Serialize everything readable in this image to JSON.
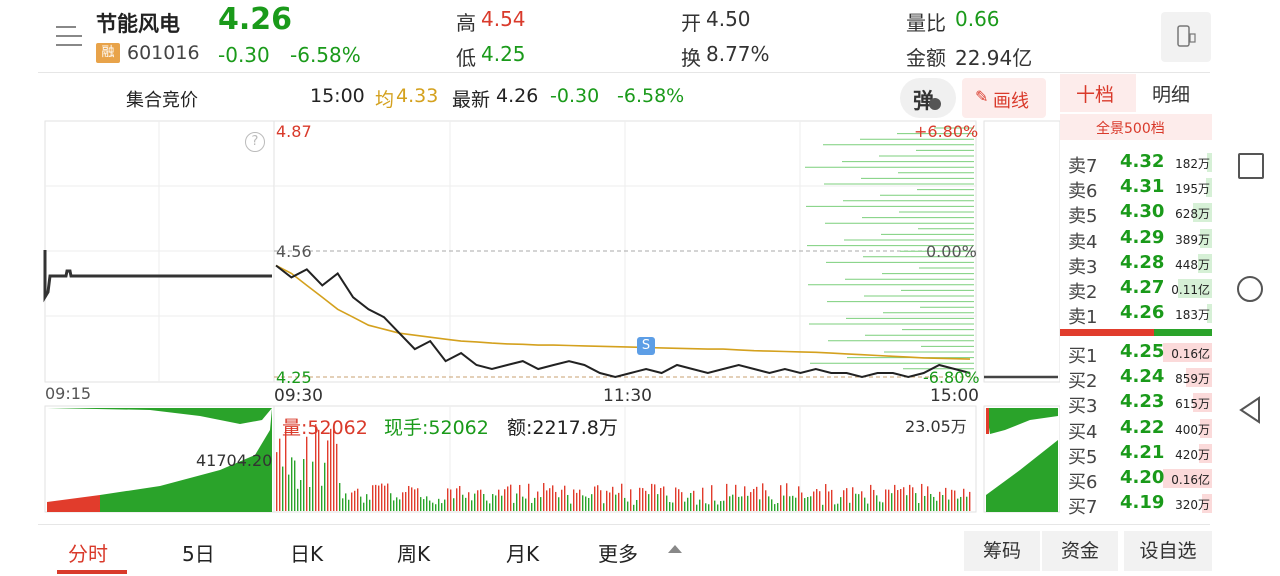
{
  "stock": {
    "name": "节能风电",
    "code": "601016",
    "margin_badge": "融",
    "price": "4.26",
    "change": "-0.30",
    "change_pct": "-6.58%"
  },
  "stats": {
    "high_label": "高",
    "high": "4.54",
    "low_label": "低",
    "low": "4.25",
    "open_label": "开",
    "open": "4.50",
    "turnover_label": "换",
    "turnover": "8.77%",
    "vol_ratio_label": "量比",
    "vol_ratio": "0.66",
    "amount_label": "金额",
    "amount": "22.94亿"
  },
  "info_bar": {
    "auction": "集合竞价",
    "time": "15:00",
    "avg_label": "均",
    "avg": "4.33",
    "latest_label": "最新",
    "latest": "4.26",
    "change": "-0.30",
    "change_pct": "-6.58%",
    "danmu_icon": "弹",
    "draw_line": "画线"
  },
  "chart": {
    "price_high": "4.87",
    "price_mid": "4.56",
    "price_low": "4.25",
    "pct_high": "+6.80%",
    "pct_mid": "0.00%",
    "pct_low": "-6.80%",
    "times": [
      "09:15",
      "09:30",
      "11:30",
      "15:00"
    ],
    "vol_label": "量:52062",
    "hand_label": "现手:52062",
    "amt_label": "额:2217.8万",
    "vol_max": "23.05万",
    "auction_vol": "41704.20",
    "marker": "S"
  },
  "chart_data": {
    "type": "line",
    "series": [
      {
        "values": [
          4.53,
          4.5,
          4.52,
          4.48,
          4.51,
          4.45,
          4.42,
          4.4,
          4.36,
          4.32,
          4.34,
          4.29,
          4.31,
          4.28,
          4.27,
          4.28,
          4.29,
          4.27,
          4.28,
          4.29,
          4.28,
          4.26,
          4.25,
          4.26,
          4.27,
          4.26,
          4.28,
          4.27,
          4.26,
          4.27,
          4.28,
          4.27,
          4.26,
          4.27,
          4.26,
          4.27,
          4.26,
          4.26,
          4.25,
          4.26,
          4.26,
          4.25,
          4.26,
          4.28,
          4.27,
          4.26
        ]
      },
      {
        "values": [
          4.53,
          4.51,
          4.48,
          4.45,
          4.42,
          4.4,
          4.38,
          4.37,
          4.36,
          4.355,
          4.35,
          4.345,
          4.34,
          4.338,
          4.335,
          4.333,
          4.332,
          4.33,
          4.33,
          4.329,
          4.328,
          4.327,
          4.326,
          4.325,
          4.324,
          4.323,
          4.322,
          4.321,
          4.32,
          4.32,
          4.318,
          4.316,
          4.315,
          4.314,
          4.313,
          4.312,
          4.31,
          4.308,
          4.306,
          4.304,
          4.302,
          4.3,
          4.298,
          4.297,
          4.296,
          4.295
        ]
      }
    ],
    "ylim": [
      4.25,
      4.87
    ]
  },
  "orderbook": {
    "tab_active": "十档",
    "tab_other": "明细",
    "full_depth": "全景500档",
    "asks": [
      {
        "label": "卖7",
        "price": "4.32",
        "vol": "182万",
        "ratio": 0.09
      },
      {
        "label": "卖6",
        "price": "4.31",
        "vol": "195万",
        "ratio": 0.1
      },
      {
        "label": "卖5",
        "price": "4.30",
        "vol": "628万",
        "ratio": 0.32
      },
      {
        "label": "卖4",
        "price": "4.29",
        "vol": "389万",
        "ratio": 0.2
      },
      {
        "label": "卖3",
        "price": "4.28",
        "vol": "448万",
        "ratio": 0.23
      },
      {
        "label": "卖2",
        "price": "4.27",
        "vol": "0.11亿",
        "ratio": 0.56
      },
      {
        "label": "卖1",
        "price": "4.26",
        "vol": "183万",
        "ratio": 0.09
      }
    ],
    "bids": [
      {
        "label": "买1",
        "price": "4.25",
        "vol": "0.16亿",
        "ratio": 0.82
      },
      {
        "label": "买2",
        "price": "4.24",
        "vol": "859万",
        "ratio": 0.44
      },
      {
        "label": "买3",
        "price": "4.23",
        "vol": "615万",
        "ratio": 0.31
      },
      {
        "label": "买4",
        "price": "4.22",
        "vol": "400万",
        "ratio": 0.2
      },
      {
        "label": "买5",
        "price": "4.21",
        "vol": "420万",
        "ratio": 0.21
      },
      {
        "label": "买6",
        "price": "4.20",
        "vol": "0.16亿",
        "ratio": 0.82
      },
      {
        "label": "买7",
        "price": "4.19",
        "vol": "320万",
        "ratio": 0.16
      }
    ]
  },
  "bottom_tabs": {
    "intraday": "分时",
    "five_day": "5日",
    "day_k": "日K",
    "week_k": "周K",
    "month_k": "月K",
    "more": "更多"
  },
  "bottom_buttons": {
    "chips": "筹码",
    "funds": "资金",
    "watchlist": "设自选"
  },
  "colors": {
    "up": "#d93a2b",
    "down": "#1a9a1a",
    "avg": "#d4a11e"
  }
}
